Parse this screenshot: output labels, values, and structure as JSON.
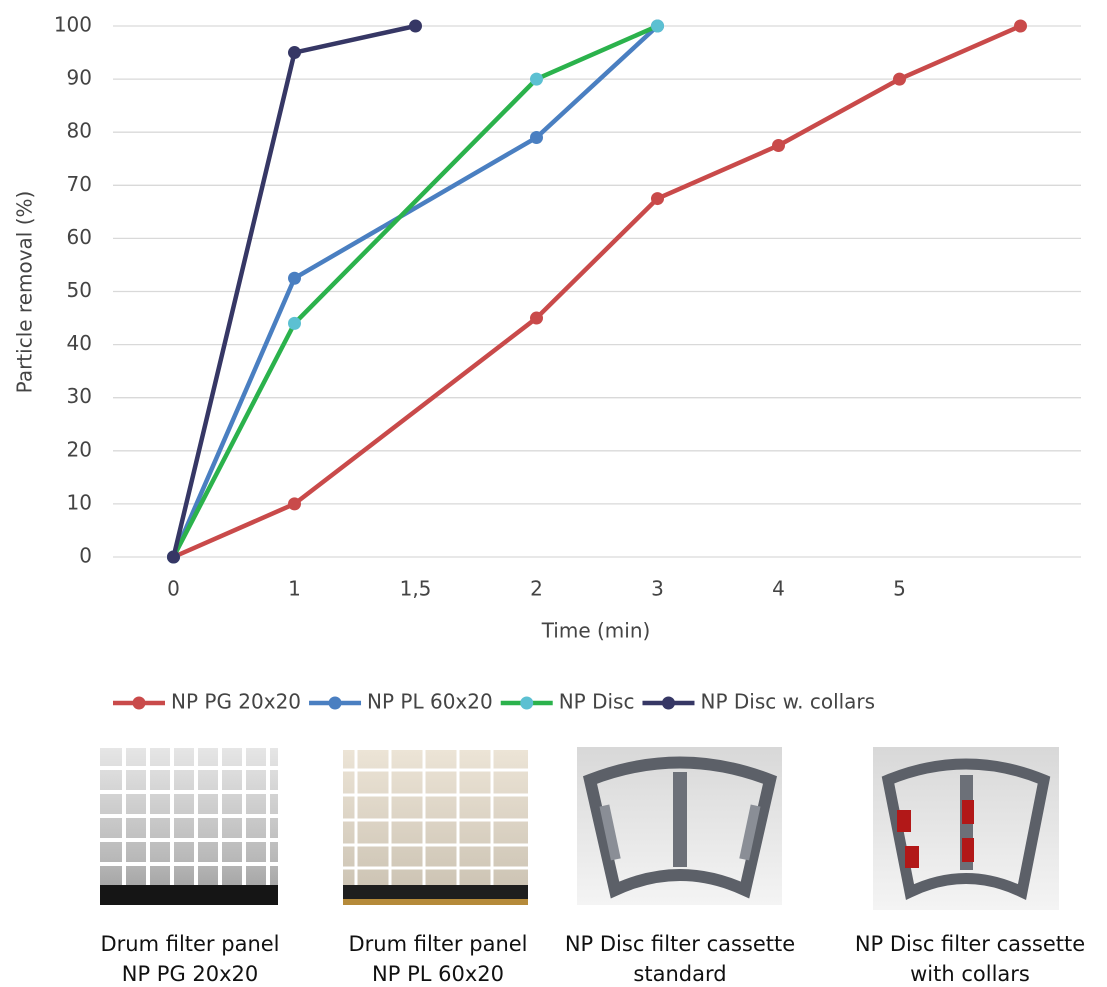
{
  "chart_data": {
    "type": "line",
    "y_label": "Particle removal (%)",
    "x_label": "Time (min)",
    "categories": [
      "0",
      "1",
      "1,5",
      "2",
      "3",
      "4",
      "5",
      null
    ],
    "series": [
      {
        "name": "NP PG 20x20",
        "color": "#c94a4a",
        "marker_color": "#c94a4a",
        "values": [
          0,
          10,
          null,
          45,
          67.5,
          77.5,
          90,
          100
        ]
      },
      {
        "name": "NP PL 60x20",
        "color": "#4a7fc1",
        "marker_color": "#4a7fc1",
        "values": [
          0,
          52.5,
          null,
          79,
          100,
          null,
          null,
          null
        ]
      },
      {
        "name": "NP Disc",
        "color": "#2bb24c",
        "marker_color": "#5cc0d2",
        "values": [
          0,
          44,
          null,
          90,
          100,
          null,
          null,
          null
        ]
      },
      {
        "name": "NP Disc w. collars",
        "color": "#363765",
        "marker_color": "#363765",
        "values": [
          0,
          95,
          100,
          null,
          null,
          null,
          null,
          null
        ]
      }
    ],
    "connect_gaps": true,
    "ylim": [
      0,
      100
    ],
    "yticks": [
      0,
      10,
      20,
      30,
      40,
      50,
      60,
      70,
      80,
      90,
      100
    ],
    "grid": true
  },
  "panels": [
    {
      "caption": [
        "Drum filter panel",
        "NP PG 20x20"
      ]
    },
    {
      "caption": [
        "Drum filter panel",
        "NP PL 60x20"
      ]
    },
    {
      "caption": [
        "NP Disc filter cassette",
        "standard"
      ]
    },
    {
      "caption": [
        "NP Disc filter cassette",
        "with collars"
      ]
    }
  ]
}
